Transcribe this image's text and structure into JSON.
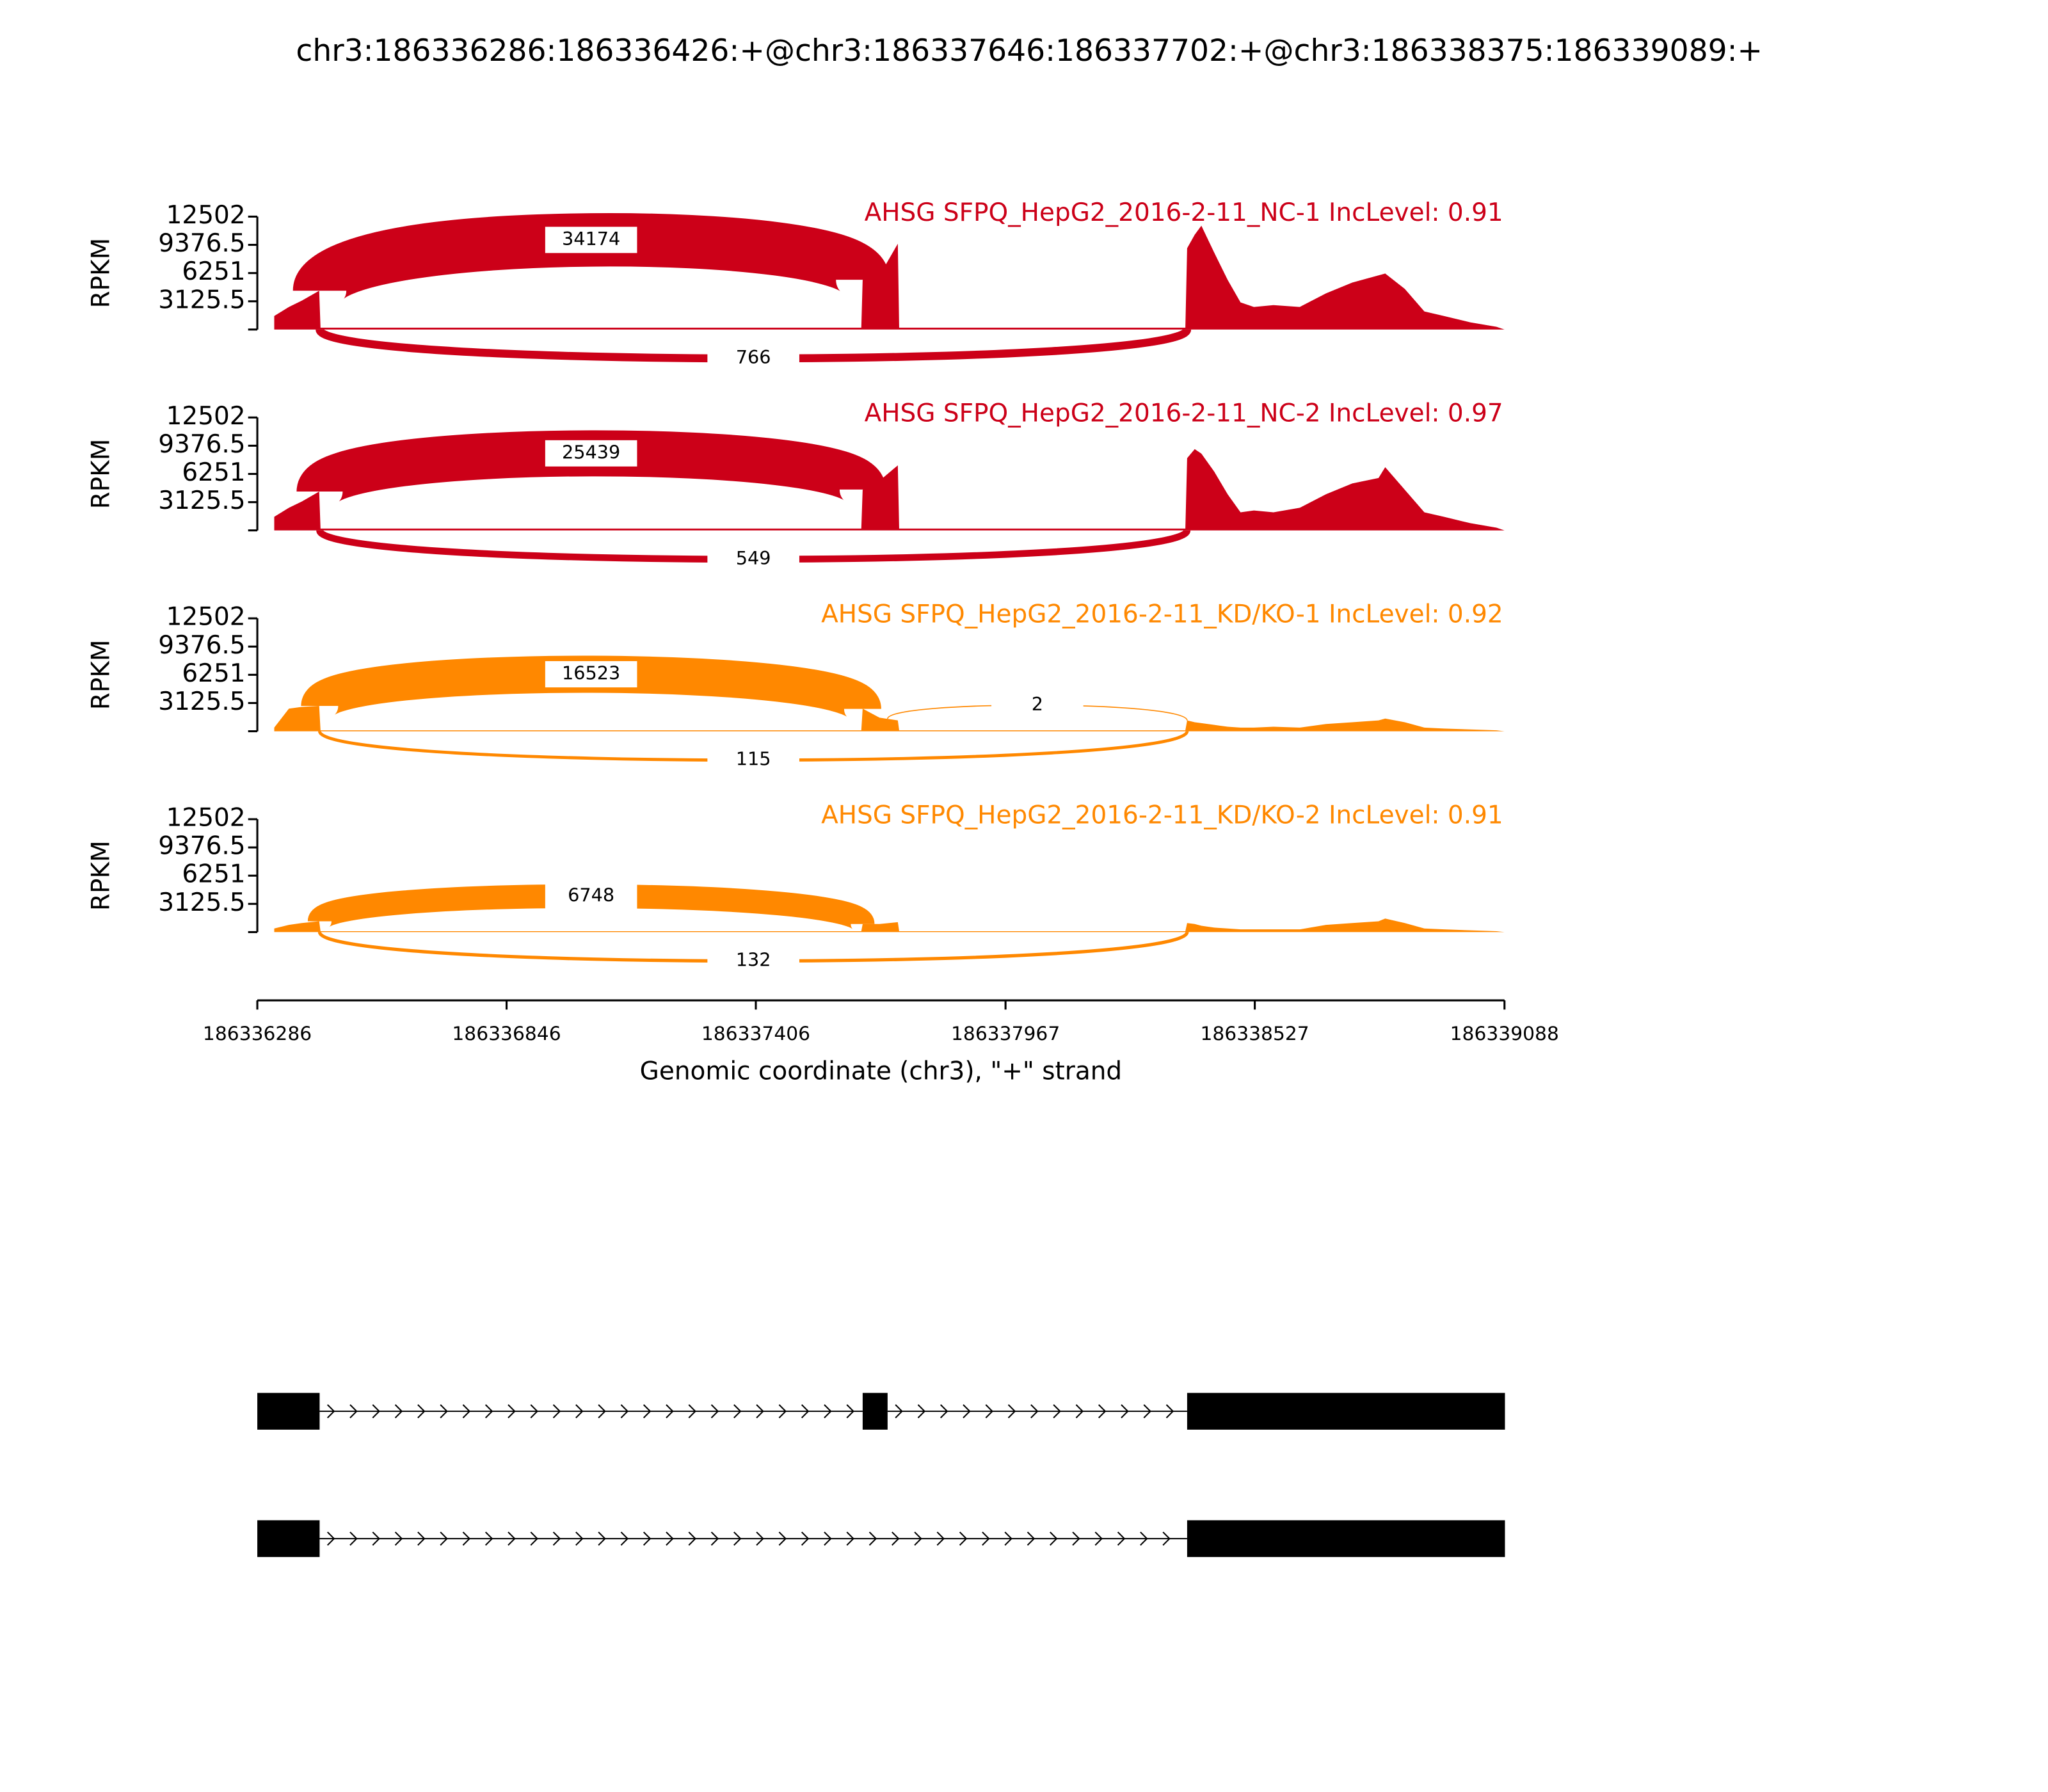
{
  "chart_data": {
    "type": "sashimi",
    "title": "chr3:186336286:186336426:+@chr3:186337646:186337702:+@chr3:186338375:186339089:+",
    "xlabel": "Genomic coordinate (chr3), \"+\" strand",
    "ylabel": "RPKM",
    "xlim": [
      186336286,
      186339088
    ],
    "xticks": [
      186336286,
      186336846,
      186337406,
      186337967,
      186338527,
      186339088
    ],
    "panels": [
      {
        "label": "AHSG SFPQ_HepG2_2016-2-11_NC-1 IncLevel: 0.91",
        "color": "#cc0018",
        "ylim": [
          0,
          12502
        ],
        "yticks": [
          3125.5,
          6251,
          9376.5,
          12502
        ],
        "x": [
          186336324,
          186336357,
          186336386,
          186336425,
          186336428,
          186337643,
          186337646,
          186337684,
          186337725,
          186337728,
          186338371,
          186338375,
          186338392,
          186338407,
          186338436,
          186338466,
          186338495,
          186338525,
          186338569,
          186338628,
          186338687,
          186338746,
          186338805,
          186338820,
          186338864,
          186338908,
          186338952,
          186339011,
          186339070,
          186339088
        ],
        "values": [
          1500,
          2500,
          3200,
          4300,
          200,
          200,
          5500,
          6000,
          9500,
          200,
          200,
          9000,
          10500,
          11500,
          8500,
          5500,
          3000,
          2500,
          2700,
          2500,
          4000,
          5200,
          6000,
          6200,
          4500,
          2000,
          1500,
          800,
          300,
          0
        ],
        "junctions": [
          {
            "start": 186336426,
            "end": 186337646,
            "count": 34174,
            "side": "above"
          },
          {
            "start": 186336426,
            "end": 186338375,
            "count": 766,
            "side": "below"
          }
        ]
      },
      {
        "label": "AHSG SFPQ_HepG2_2016-2-11_NC-2 IncLevel: 0.97",
        "color": "#cc0018",
        "ylim": [
          0,
          12502
        ],
        "yticks": [
          3125.5,
          6251,
          9376.5,
          12502
        ],
        "x": [
          186336324,
          186336357,
          186336386,
          186336425,
          186336428,
          186337643,
          186337646,
          186337684,
          186337725,
          186337728,
          186338371,
          186338375,
          186338392,
          186338407,
          186338436,
          186338466,
          186338495,
          186338525,
          186338569,
          186338628,
          186338687,
          186338746,
          186338805,
          186338820,
          186338864,
          186338908,
          186338952,
          186339011,
          186339070,
          186339088
        ],
        "values": [
          1500,
          2500,
          3200,
          4300,
          200,
          200,
          4500,
          5500,
          7200,
          200,
          200,
          8000,
          9000,
          8500,
          6500,
          4000,
          2000,
          2200,
          2000,
          2500,
          4000,
          5200,
          5800,
          7000,
          4500,
          2000,
          1500,
          800,
          300,
          0
        ],
        "junctions": [
          {
            "start": 186336426,
            "end": 186337646,
            "count": 25439,
            "side": "above"
          },
          {
            "start": 186336426,
            "end": 186338375,
            "count": 549,
            "side": "below"
          }
        ]
      },
      {
        "label": "AHSG SFPQ_HepG2_2016-2-11_KD/KO-1 IncLevel: 0.92",
        "color": "#ff8800",
        "ylim": [
          0,
          12502
        ],
        "yticks": [
          3125.5,
          6251,
          9376.5,
          12502
        ],
        "x": [
          186336324,
          186336357,
          186336386,
          186336425,
          186336428,
          186337643,
          186337646,
          186337684,
          186337725,
          186337728,
          186338371,
          186338375,
          186338392,
          186338407,
          186338436,
          186338466,
          186338495,
          186338525,
          186338569,
          186338628,
          186338687,
          186338746,
          186338805,
          186338820,
          186338864,
          186338908,
          186338952,
          186339011,
          186339070,
          186339088
        ],
        "values": [
          400,
          2500,
          2700,
          2800,
          100,
          100,
          2500,
          1500,
          1200,
          100,
          100,
          1200,
          1000,
          900,
          700,
          500,
          400,
          400,
          500,
          400,
          800,
          1000,
          1200,
          1400,
          1000,
          400,
          300,
          200,
          100,
          0
        ],
        "junctions": [
          {
            "start": 186336426,
            "end": 186337646,
            "count": 16523,
            "side": "above"
          },
          {
            "start": 186337702,
            "end": 186338375,
            "count": 2,
            "side": "above"
          },
          {
            "start": 186336426,
            "end": 186338375,
            "count": 115,
            "side": "below"
          }
        ]
      },
      {
        "label": "AHSG SFPQ_HepG2_2016-2-11_KD/KO-2 IncLevel: 0.91",
        "color": "#ff8800",
        "ylim": [
          0,
          12502
        ],
        "yticks": [
          3125.5,
          6251,
          9376.5,
          12502
        ],
        "x": [
          186336324,
          186336357,
          186336386,
          186336425,
          186336428,
          186337643,
          186337646,
          186337684,
          186337725,
          186337728,
          186338371,
          186338375,
          186338392,
          186338407,
          186338436,
          186338466,
          186338495,
          186338525,
          186338569,
          186338628,
          186338687,
          186338746,
          186338805,
          186338820,
          186338864,
          186338908,
          186338952,
          186339011,
          186339070,
          186339088
        ],
        "values": [
          400,
          800,
          1000,
          1200,
          100,
          100,
          900,
          900,
          1100,
          100,
          100,
          1000,
          900,
          700,
          500,
          400,
          300,
          300,
          300,
          300,
          800,
          1000,
          1200,
          1500,
          1000,
          400,
          300,
          200,
          100,
          0
        ],
        "junctions": [
          {
            "start": 186336426,
            "end": 186337646,
            "count": 6748,
            "side": "above"
          },
          {
            "start": 186336426,
            "end": 186338375,
            "count": 132,
            "side": "below"
          }
        ]
      }
    ],
    "transcript_color": "#000000",
    "transcripts": [
      {
        "exons": [
          [
            186336286,
            186336426
          ],
          [
            186337646,
            186337702
          ],
          [
            186338375,
            186339089
          ]
        ]
      },
      {
        "exons": [
          [
            186336286,
            186336426
          ],
          [
            186338375,
            186339089
          ]
        ]
      }
    ]
  }
}
